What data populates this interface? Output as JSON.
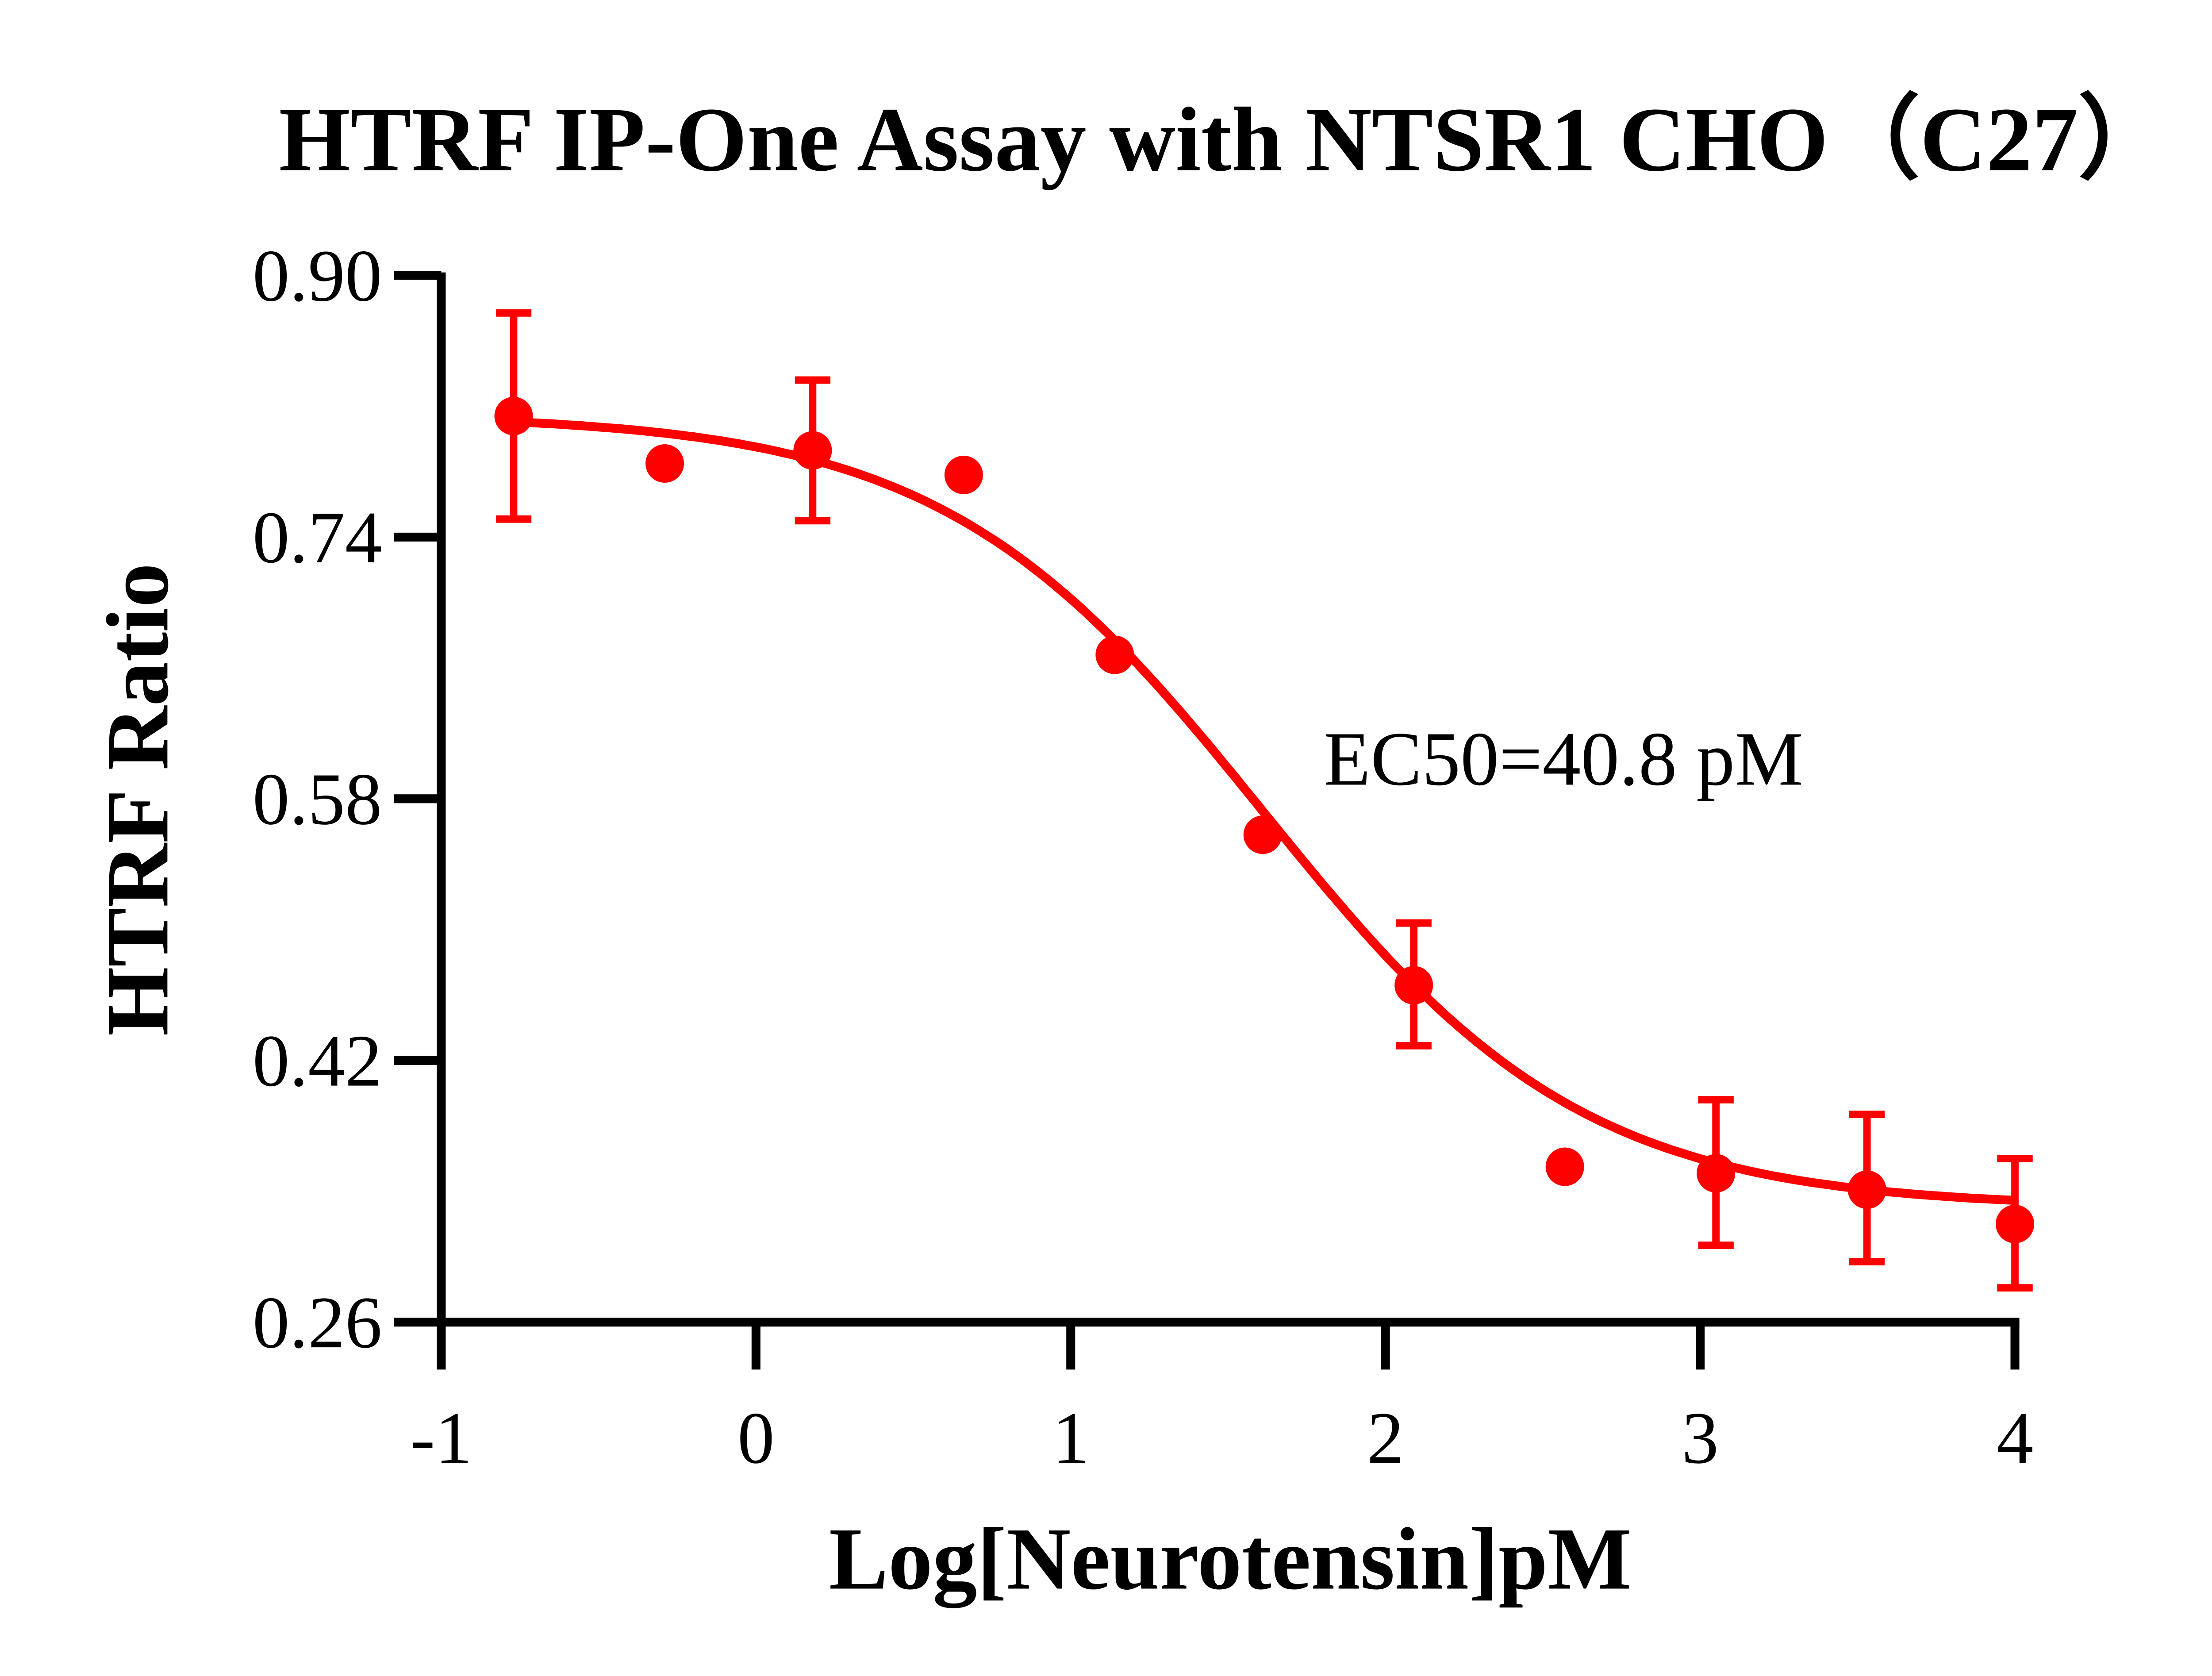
{
  "chart_data": {
    "type": "scatter",
    "title": "HTRF IP-One Assay with NTSR1 CHO（C27）",
    "xlabel": "Log[Neurotensin]pM",
    "ylabel": "HTRF Ratio",
    "xlim": [
      -1,
      4
    ],
    "ylim": [
      0.26,
      0.9
    ],
    "xticks": [
      "-1",
      "0",
      "1",
      "2",
      "3",
      "4"
    ],
    "yticks": [
      "0.26",
      "0.42",
      "0.58",
      "0.74",
      "0.90"
    ],
    "grid": false,
    "color": "#ff0000",
    "annotation": "EC50=40.8 pM",
    "points": [
      {
        "x": -0.77,
        "y": 0.814,
        "err_low": 0.751,
        "err_high": 0.877
      },
      {
        "x": -0.29,
        "y": 0.785
      },
      {
        "x": 0.18,
        "y": 0.793,
        "err_low": 0.75,
        "err_high": 0.836
      },
      {
        "x": 0.66,
        "y": 0.778
      },
      {
        "x": 1.14,
        "y": 0.668
      },
      {
        "x": 1.61,
        "y": 0.558
      },
      {
        "x": 2.09,
        "y": 0.466,
        "err_low": 0.429,
        "err_high": 0.504
      },
      {
        "x": 2.57,
        "y": 0.355
      },
      {
        "x": 3.05,
        "y": 0.351,
        "err_low": 0.307,
        "err_high": 0.396
      },
      {
        "x": 3.53,
        "y": 0.341,
        "err_low": 0.297,
        "err_high": 0.387
      },
      {
        "x": 4.0,
        "y": 0.32,
        "err_low": 0.281,
        "err_high": 0.36
      }
    ],
    "fit": {
      "model": "four-parameter logistic",
      "top": 0.815,
      "bottom": 0.33,
      "logEC50": 1.61,
      "hill_slope": -0.85
    }
  }
}
